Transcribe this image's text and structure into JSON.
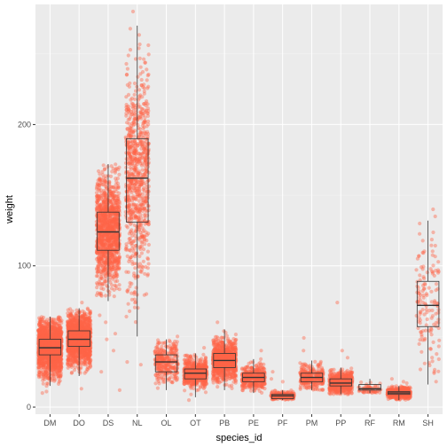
{
  "chart_data": {
    "type": "boxplot-jitter",
    "title": "",
    "xlabel": "species_id",
    "ylabel": "weight",
    "ylim": [
      -5,
      285
    ],
    "yticks": [
      0,
      100,
      200
    ],
    "grid": true,
    "colors": {
      "panel_bg": "#ebebeb",
      "grid_major": "#ffffff",
      "grid_minor": "#f4f4f4",
      "points": "#ff6347",
      "box_line": "#333333",
      "text": "#4d4d4d"
    },
    "categories": [
      "DM",
      "DO",
      "DS",
      "NL",
      "OL",
      "OT",
      "PB",
      "PE",
      "PF",
      "PM",
      "PP",
      "RF",
      "RM",
      "SH"
    ],
    "boxes": [
      {
        "species": "DM",
        "min": 15,
        "q1": 37,
        "median": 42,
        "q3": 48,
        "max": 64,
        "n": 1800,
        "spread": 9,
        "outliers": [
          10,
          11
        ]
      },
      {
        "species": "DO",
        "min": 22,
        "q1": 43,
        "median": 48,
        "q3": 54,
        "max": 70,
        "n": 1300,
        "spread": 9,
        "outliers": [
          13,
          74
        ]
      },
      {
        "species": "DS",
        "min": 75,
        "q1": 111,
        "median": 124,
        "q3": 138,
        "max": 172,
        "n": 1200,
        "spread": 19,
        "outliers": [
          12,
          25,
          40,
          48,
          52,
          60,
          65
        ]
      },
      {
        "species": "NL",
        "min": 50,
        "q1": 131,
        "median": 162,
        "q3": 190,
        "max": 270,
        "n": 800,
        "spread": 38,
        "outliers": [
          30,
          32,
          280
        ]
      },
      {
        "species": "OL",
        "min": 12,
        "q1": 25,
        "median": 32,
        "q3": 37,
        "max": 48,
        "n": 300,
        "spread": 7,
        "outliers": [
          50
        ]
      },
      {
        "species": "OT",
        "min": 7,
        "q1": 20,
        "median": 24,
        "q3": 27,
        "max": 38,
        "n": 600,
        "spread": 5,
        "outliers": [
          5,
          42
        ]
      },
      {
        "species": "PB",
        "min": 12,
        "q1": 28,
        "median": 33,
        "q3": 38,
        "max": 55,
        "n": 900,
        "spread": 7,
        "outliers": [
          60
        ]
      },
      {
        "species": "PE",
        "min": 10,
        "q1": 18,
        "median": 21,
        "q3": 24,
        "max": 34,
        "n": 400,
        "spread": 4,
        "outliers": [
          40
        ]
      },
      {
        "species": "PF",
        "min": 5,
        "q1": 6,
        "median": 8,
        "q3": 9,
        "max": 12,
        "n": 200,
        "spread": 1.6,
        "outliers": [
          18,
          20,
          25
        ]
      },
      {
        "species": "PM",
        "min": 12,
        "q1": 18,
        "median": 21,
        "q3": 24,
        "max": 33,
        "n": 300,
        "spread": 4,
        "outliers": [
          40,
          49
        ]
      },
      {
        "species": "PP",
        "min": 9,
        "q1": 15,
        "median": 17,
        "q3": 20,
        "max": 28,
        "n": 500,
        "spread": 4,
        "outliers": [
          35,
          40,
          74
        ]
      },
      {
        "species": "RF",
        "min": 10,
        "q1": 12,
        "median": 13,
        "q3": 16,
        "max": 20,
        "n": 60,
        "spread": 2,
        "outliers": []
      },
      {
        "species": "RM",
        "min": 5,
        "q1": 9,
        "median": 10,
        "q3": 11,
        "max": 15,
        "n": 450,
        "spread": 2,
        "outliers": [
          17,
          18,
          20
        ]
      },
      {
        "species": "SH",
        "min": 16,
        "q1": 57,
        "median": 72,
        "q3": 89,
        "max": 132,
        "n": 140,
        "spread": 23,
        "outliers": [
          135,
          140
        ]
      }
    ]
  }
}
